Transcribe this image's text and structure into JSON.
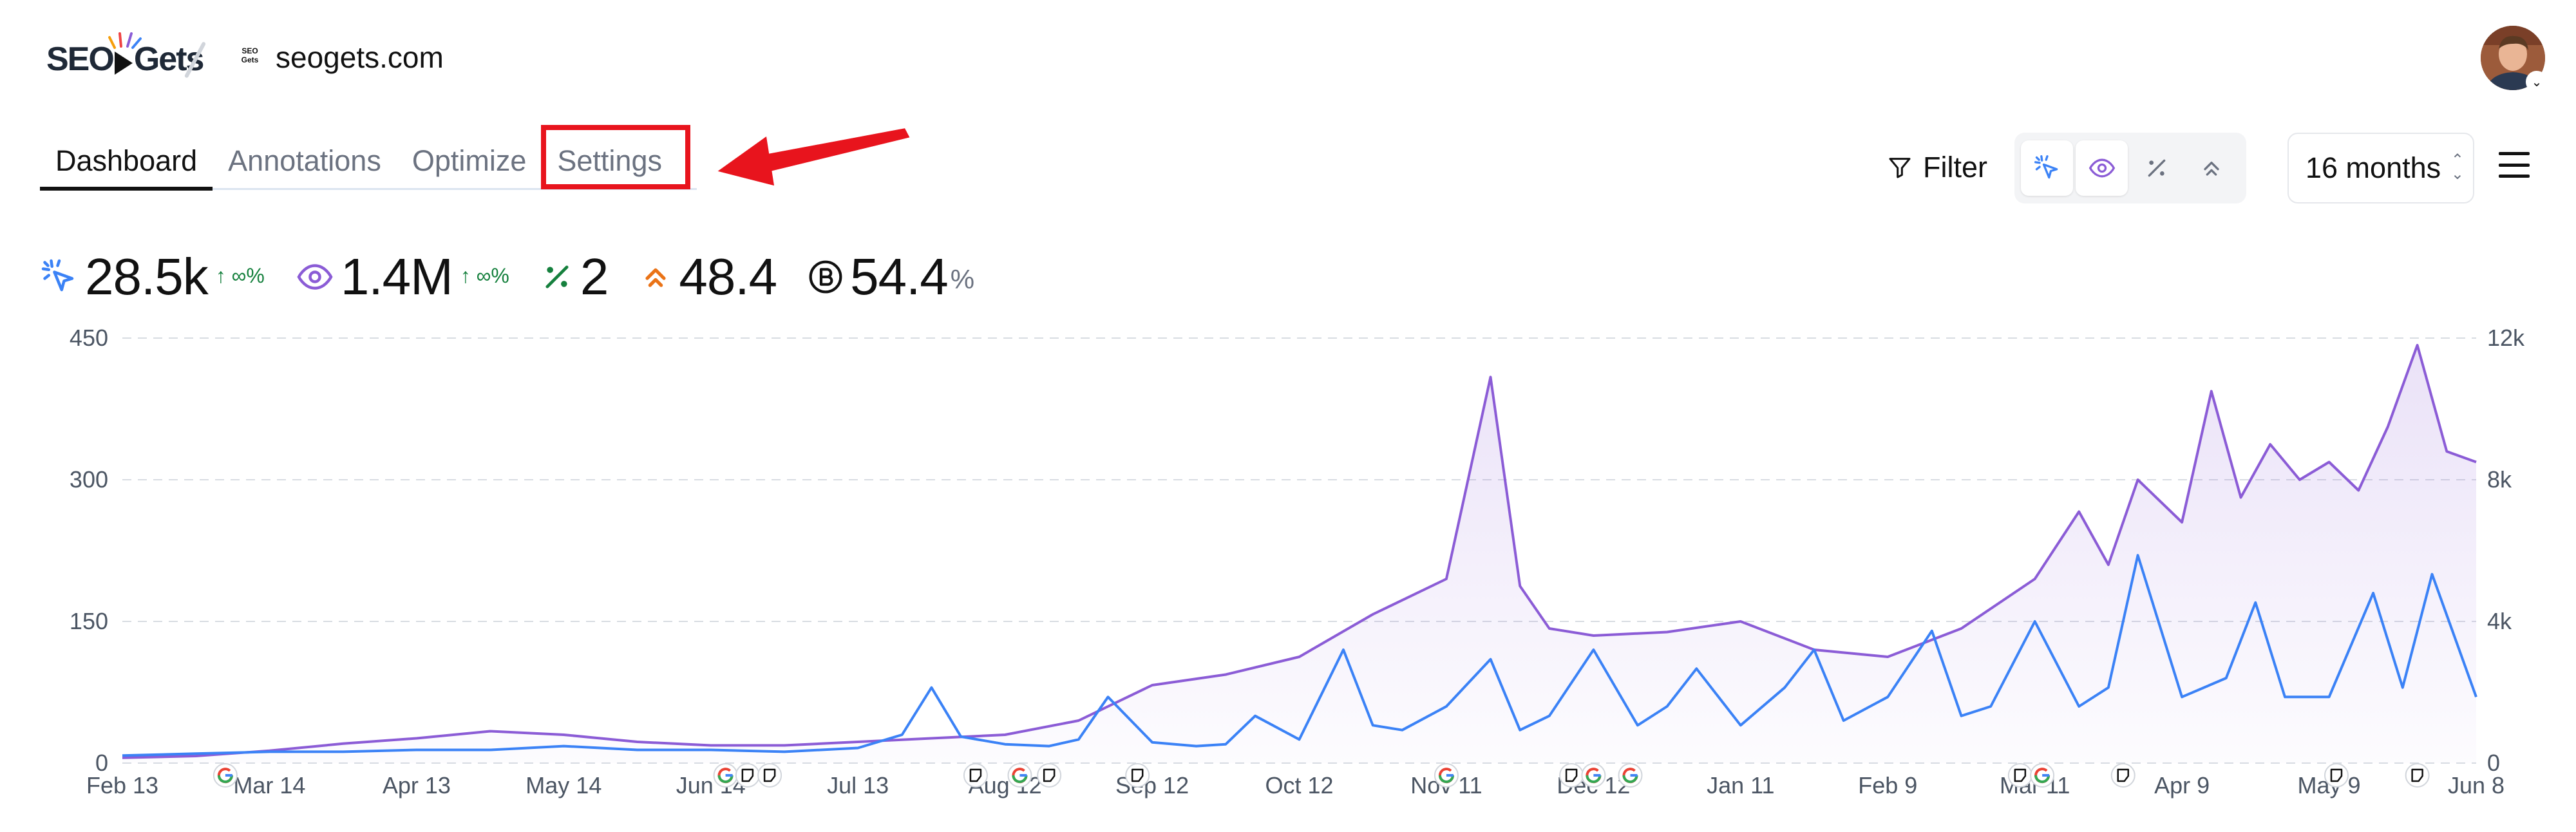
{
  "header": {
    "logo_text_left": "SEO",
    "logo_text_right": "Gets",
    "favicon_text": "SEO Gets",
    "site_name": "seogets.com"
  },
  "tabs": [
    {
      "label": "Dashboard",
      "active": true
    },
    {
      "label": "Annotations",
      "active": false
    },
    {
      "label": "Optimize",
      "active": false
    },
    {
      "label": "Settings",
      "active": false
    }
  ],
  "toolbar": {
    "filter_label": "Filter",
    "metric_toggles": [
      {
        "icon": "clicks-icon",
        "on": true
      },
      {
        "icon": "eye-icon",
        "on": true
      },
      {
        "icon": "ctr-icon",
        "on": false
      },
      {
        "icon": "position-icon",
        "on": false
      }
    ],
    "range_label": "16 months",
    "menu_icon": "hamburger-icon"
  },
  "stats": {
    "clicks": {
      "value": "28.5k",
      "delta": "↑ ∞%"
    },
    "impressions": {
      "value": "1.4M",
      "delta": "↑ ∞%"
    },
    "ctr": {
      "value": "2"
    },
    "position": {
      "value": "48.4"
    },
    "brand": {
      "value": "54.4",
      "unit": "%"
    }
  },
  "colors": {
    "clicks": "#3b82f6",
    "impressions": "#8b5cd6",
    "ctr": "#15803d",
    "position": "#ea7317",
    "highlight": "#e8141d"
  },
  "chart_data": {
    "type": "line",
    "x_tick_labels": [
      "Feb 13",
      "Mar 14",
      "Apr 13",
      "May 14",
      "Jun 14",
      "Jul 13",
      "Aug 12",
      "Sep 12",
      "Oct 12",
      "Nov 11",
      "Dec 12",
      "Jan 11",
      "Feb 9",
      "Mar 11",
      "Apr 9",
      "May 9",
      "Jun 8"
    ],
    "left_axis": {
      "ticks": [
        "0",
        "150",
        "300",
        "450"
      ],
      "range": [
        0,
        450
      ]
    },
    "right_axis": {
      "ticks": [
        "0",
        "4k",
        "8k",
        "12k"
      ],
      "range": [
        0,
        12000
      ]
    },
    "grid": true,
    "series": [
      {
        "metric": "clicks",
        "axis": "left",
        "x": [
          0,
          0.5,
          1,
          1.5,
          2,
          2.5,
          3,
          3.5,
          4,
          4.5,
          5,
          5.3,
          5.5,
          5.7,
          6,
          6.3,
          6.5,
          6.7,
          7,
          7.3,
          7.5,
          7.7,
          8,
          8.3,
          8.5,
          8.7,
          9,
          9.3,
          9.5,
          9.7,
          10,
          10.3,
          10.5,
          10.7,
          11,
          11.3,
          11.5,
          11.7,
          12,
          12.3,
          12.5,
          12.7,
          13,
          13.3,
          13.5,
          13.7,
          14,
          14.3,
          14.5,
          14.7,
          15,
          15.3,
          15.5,
          15.7,
          16
        ],
        "values": [
          8,
          10,
          12,
          12,
          14,
          14,
          18,
          14,
          14,
          12,
          16,
          30,
          80,
          28,
          20,
          18,
          25,
          70,
          22,
          18,
          20,
          50,
          25,
          120,
          40,
          35,
          60,
          110,
          35,
          50,
          120,
          40,
          60,
          100,
          40,
          80,
          120,
          45,
          70,
          140,
          50,
          60,
          150,
          60,
          80,
          220,
          70,
          90,
          170,
          70,
          70,
          180,
          80,
          200,
          70
        ]
      },
      {
        "metric": "impressions",
        "axis": "right",
        "x": [
          0,
          0.5,
          1,
          1.5,
          2,
          2.5,
          3,
          3.5,
          4,
          4.5,
          5,
          5.5,
          6,
          6.5,
          7,
          7.5,
          8,
          8.5,
          9,
          9.3,
          9.5,
          9.7,
          10,
          10.5,
          11,
          11.5,
          12,
          12.5,
          13,
          13.3,
          13.5,
          13.7,
          14,
          14.2,
          14.4,
          14.6,
          14.8,
          15,
          15.2,
          15.4,
          15.6,
          15.8,
          16
        ],
        "values": [
          150,
          200,
          350,
          550,
          700,
          900,
          800,
          600,
          500,
          500,
          600,
          700,
          800,
          1200,
          2200,
          2500,
          3000,
          4200,
          5200,
          10900,
          5000,
          3800,
          3600,
          3700,
          4000,
          3200,
          3000,
          3800,
          5200,
          7100,
          5600,
          8000,
          6800,
          10500,
          7500,
          9000,
          8000,
          8500,
          7700,
          9500,
          11800,
          8800,
          8500
        ]
      }
    ],
    "annotation_markers": [
      {
        "x": 0.7,
        "icon": "google-icon"
      },
      {
        "x": 4.1,
        "icon": "google-icon"
      },
      {
        "x": 4.25,
        "icon": "note-icon"
      },
      {
        "x": 4.4,
        "icon": "note-icon"
      },
      {
        "x": 5.8,
        "icon": "note-icon"
      },
      {
        "x": 6.1,
        "icon": "google-icon"
      },
      {
        "x": 6.3,
        "icon": "note-icon"
      },
      {
        "x": 6.9,
        "icon": "note-icon"
      },
      {
        "x": 9.0,
        "icon": "google-icon"
      },
      {
        "x": 9.85,
        "icon": "note-icon"
      },
      {
        "x": 10.0,
        "icon": "google-icon"
      },
      {
        "x": 10.25,
        "icon": "google-icon"
      },
      {
        "x": 12.9,
        "icon": "note-icon"
      },
      {
        "x": 13.05,
        "icon": "google-icon"
      },
      {
        "x": 13.6,
        "icon": "note-icon"
      },
      {
        "x": 15.05,
        "icon": "note-icon"
      },
      {
        "x": 15.6,
        "icon": "note-icon"
      }
    ]
  }
}
